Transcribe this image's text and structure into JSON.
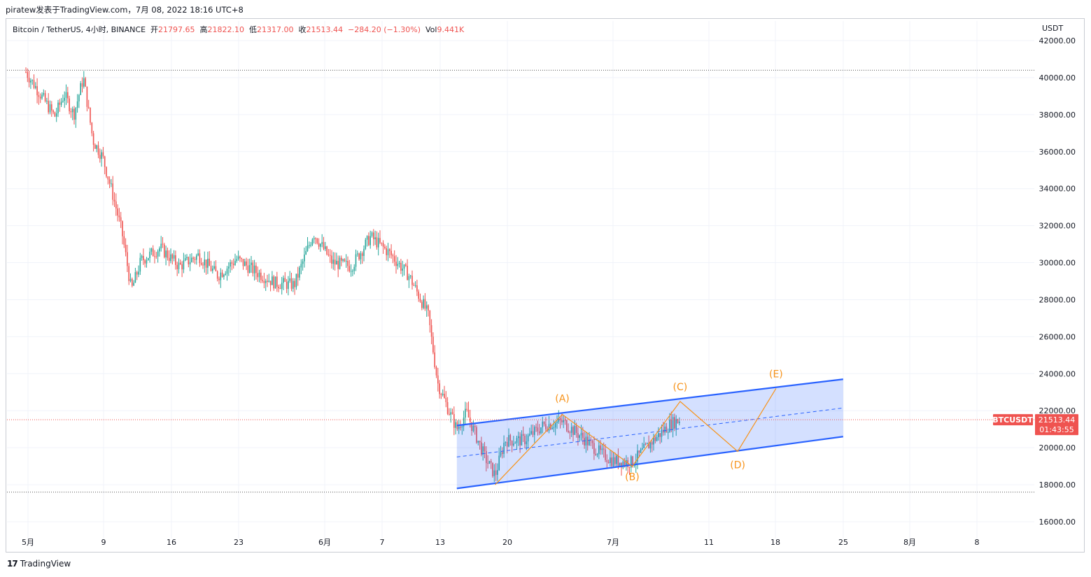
{
  "header": {
    "publisher_line": "piratew发表于TradingView.com，7月 08, 2022 18:16 UTC+8"
  },
  "legend": {
    "symbol": "Bitcoin / TetherUS, 4小时, BINANCE",
    "open_label": "开",
    "open": "21797.65",
    "high_label": "高",
    "high": "21822.10",
    "low_label": "低",
    "low": "21317.00",
    "close_label": "收",
    "close": "21513.44",
    "change": "−284.20 (−1.30%)",
    "vol_label": "Vol",
    "vol": "9.441K"
  },
  "footer": {
    "logo_text": "17",
    "brand": "TradingView"
  },
  "colors": {
    "up": "#26a69a",
    "down": "#ef5350",
    "channel_line": "#2962ff",
    "channel_fill": "#2962ff",
    "wave": "#f7931a",
    "last_price_bg": "#ef5350"
  },
  "chart_data": {
    "type": "candlestick",
    "y_axis": {
      "currency": "USDT",
      "tick_labels": [
        "42000.00",
        "40000.00",
        "38000.00",
        "36000.00",
        "34000.00",
        "32000.00",
        "30000.00",
        "28000.00",
        "26000.00",
        "24000.00",
        "22000.00",
        "20000.00",
        "18000.00",
        "16000.00"
      ],
      "ylim": [
        15000,
        43000
      ]
    },
    "x_axis": {
      "tick_labels": [
        "5月",
        "9",
        "16",
        "23",
        "6月",
        "7",
        "13",
        "20",
        "7月",
        "11",
        "18",
        "25",
        "8月",
        "8"
      ]
    },
    "price_path": [
      [
        "5月1日",
        40300
      ],
      [
        "5月3日",
        38700
      ],
      [
        "5月4日",
        37900
      ],
      [
        "5月5日",
        39100
      ],
      [
        "5月6日",
        38000
      ],
      [
        "5月7日",
        40000
      ],
      [
        "5月8日",
        36600
      ],
      [
        "5月9日",
        35700
      ],
      [
        "5月10日",
        33800
      ],
      [
        "5月11日",
        31700
      ],
      [
        "5月12日",
        28500
      ],
      [
        "5月13日",
        30100
      ],
      [
        "5月15日",
        30800
      ],
      [
        "5月17日",
        29800
      ],
      [
        "5月19日",
        30400
      ],
      [
        "5月21日",
        29300
      ],
      [
        "5月23日",
        30200
      ],
      [
        "5月25日",
        29500
      ],
      [
        "5月27日",
        28900
      ],
      [
        "5月29日",
        28800
      ],
      [
        "5月31日",
        31600
      ],
      [
        "6月2日",
        30000
      ],
      [
        "6月4日",
        29800
      ],
      [
        "6月6日",
        31400
      ],
      [
        "6月8日",
        30500
      ],
      [
        "6月10日",
        29300
      ],
      [
        "6月12日",
        27200
      ],
      [
        "6月13日",
        23500
      ],
      [
        "6月14日",
        22200
      ],
      [
        "6月15日",
        21000
      ],
      [
        "6月16日",
        21900
      ],
      [
        "6月18日",
        19400
      ],
      [
        "6月19日",
        18500
      ],
      [
        "6月20日",
        20400
      ],
      [
        "6月22日",
        20400
      ],
      [
        "6月24日",
        21200
      ],
      [
        "6月26日",
        21400
      ],
      [
        "6月27日",
        21000
      ],
      [
        "6月28日",
        20600
      ],
      [
        "6月30日",
        19700
      ],
      [
        "7月1日",
        19300
      ],
      [
        "7月3日",
        19200
      ],
      [
        "7月5日",
        20300
      ],
      [
        "7月7日",
        21300
      ],
      [
        "7月8日",
        21513
      ]
    ],
    "annotations": {
      "parallel_channel": {
        "upper": [
          [
            "6月15日",
            21200
          ],
          [
            "7月25日",
            23700
          ]
        ],
        "lower": [
          [
            "6月15日",
            17800
          ],
          [
            "7月25日",
            20600
          ]
        ],
        "median": [
          [
            "6月15日",
            19500
          ],
          [
            "7月25日",
            22150
          ]
        ]
      },
      "wave_points": [
        {
          "label": "(A)",
          "date": "6月26日",
          "price": 21800
        },
        {
          "label": "(B)",
          "date": "7月3日",
          "price": 19000
        },
        {
          "label": "(C)",
          "date": "7月8日",
          "price": 22500
        },
        {
          "label": "(D)",
          "date": "7月14日",
          "price": 19800
        },
        {
          "label": "(E)",
          "date": "7月18日",
          "price": 23200
        }
      ],
      "wave_start": {
        "date": "6月19日",
        "price": 18000
      },
      "horizontal_levels": [
        40400,
        17600
      ],
      "last_price": {
        "symbol": "BTCUSDT",
        "price": "21513.44",
        "countdown": "01:43:55"
      }
    }
  }
}
